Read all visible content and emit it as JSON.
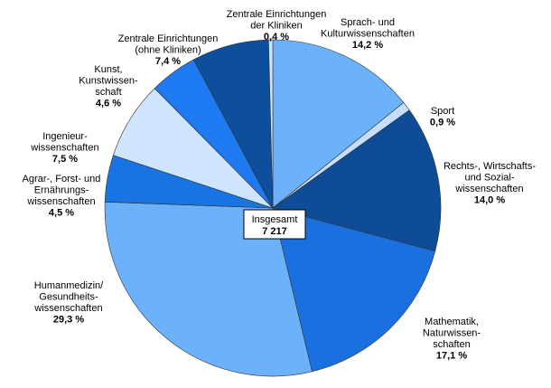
{
  "chart_data": {
    "type": "pie",
    "categories": [
      "Sprach- und\nKulturwissenschaften",
      "Sport",
      "Rechts-, Wirtschafts-\nund Sozial-\nwissenschaften",
      "Mathematik,\nNaturwissen-\nschaften",
      "Humanmedizin/\nGesundheits-\nwissenschaften",
      "Agrar-, Forst- und\nErnährungs-\nwissenschaften",
      "Ingenieur-\nwissenschaften",
      "Kunst,\nKunstwissen-\nschaft",
      "Zentrale Einrichtungen\n(ohne Kliniken)",
      "Zentrale Einrichtungen\nder Kliniken"
    ],
    "values": [
      14.2,
      0.9,
      14.0,
      17.1,
      29.3,
      4.5,
      7.5,
      4.6,
      7.4,
      0.4
    ],
    "value_labels": [
      "14,2 %",
      "0,9 %",
      "14,0 %",
      "17,1 %",
      "29,3 %",
      "4,5 %",
      "7,5 %",
      "4,6 %",
      "7,4 %",
      "0,4 %"
    ],
    "colors": [
      "#6cb2fa",
      "#c4defc",
      "#0e4c98",
      "#1b70e0",
      "#6cb2fa",
      "#1874e0",
      "#cfe5fd",
      "#1e7af0",
      "#0d4f9c",
      "#cfe5fd"
    ],
    "center_label": "Insgesamt",
    "total": 7217,
    "total_label": "7 217"
  }
}
